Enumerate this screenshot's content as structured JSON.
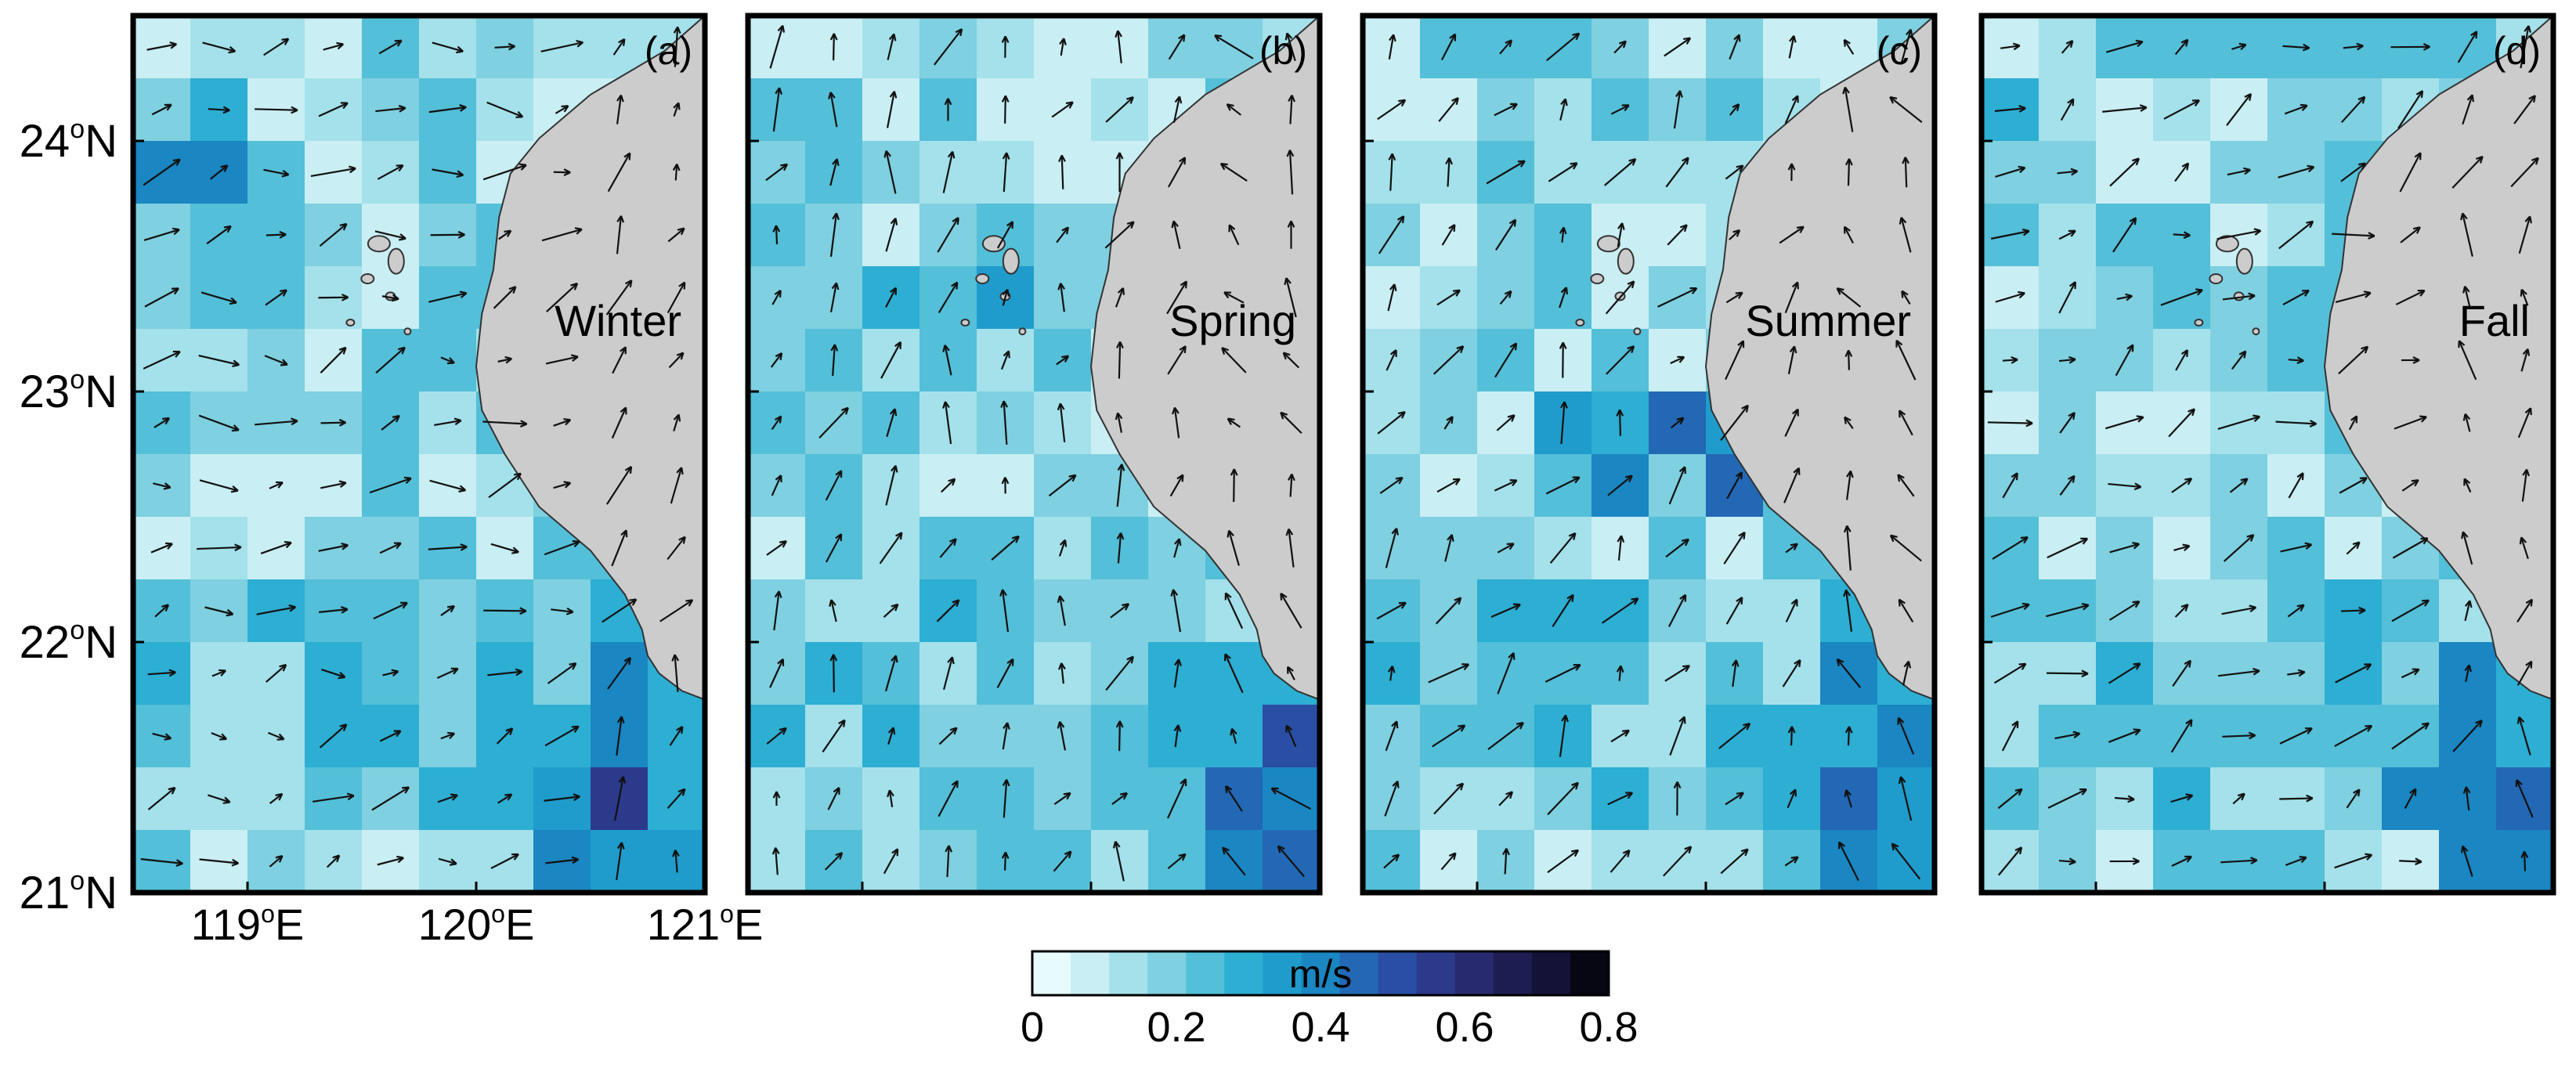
{
  "figure": {
    "y_axis": {
      "ticks": [
        {
          "deg": "24",
          "sup": "o",
          "hem": "N",
          "lat": 24
        },
        {
          "deg": "23",
          "sup": "o",
          "hem": "N",
          "lat": 23
        },
        {
          "deg": "22",
          "sup": "o",
          "hem": "N",
          "lat": 22
        },
        {
          "deg": "21",
          "sup": "o",
          "hem": "N",
          "lat": 21
        }
      ],
      "range": [
        21.0,
        24.5
      ]
    },
    "x_axis": {
      "ticks": [
        {
          "deg": "119",
          "sup": "o",
          "hem": "E",
          "lon": 119
        },
        {
          "deg": "120",
          "sup": "o",
          "hem": "E",
          "lon": 120
        },
        {
          "deg": "121",
          "sup": "o",
          "hem": "E",
          "lon": 121
        }
      ],
      "range": [
        118.5,
        121.0
      ]
    },
    "panels": [
      {
        "letter": "(a)",
        "season": "Winter",
        "seed": 11,
        "ang": 0.2,
        "hot": [
          [
            7,
            12
          ],
          [
            8,
            13
          ],
          [
            0,
            2
          ],
          [
            1,
            2
          ]
        ]
      },
      {
        "letter": "(b)",
        "season": "Spring",
        "seed": 23,
        "ang": 1.2,
        "hot": [
          [
            8,
            13
          ],
          [
            9,
            12
          ],
          [
            3,
            4
          ]
        ]
      },
      {
        "letter": "(c)",
        "season": "Summer",
        "seed": 37,
        "ang": 1.0,
        "hot": [
          [
            4,
            6
          ],
          [
            5,
            7
          ],
          [
            6,
            6
          ],
          [
            8,
            13
          ]
        ]
      },
      {
        "letter": "(d)",
        "season": "Fall",
        "seed": 41,
        "ang": 0.5,
        "hot": [
          [
            8,
            12
          ],
          [
            9,
            13
          ],
          [
            0,
            2
          ]
        ]
      }
    ],
    "colorbar": {
      "unit": "m/s",
      "min": 0,
      "max": 0.8,
      "labels": [
        "0",
        "0.2",
        "0.4",
        "0.6",
        "0.8"
      ],
      "colors": [
        "#e8fbfc",
        "#c9eef3",
        "#a4e1ea",
        "#7fd0e0",
        "#54bfd8",
        "#2daed3",
        "#1f9ccc",
        "#1a86c2",
        "#2368b4",
        "#2a4ea3",
        "#2c3a8c",
        "#272a6f",
        "#1e1d52",
        "#141237",
        "#070713"
      ]
    }
  }
}
